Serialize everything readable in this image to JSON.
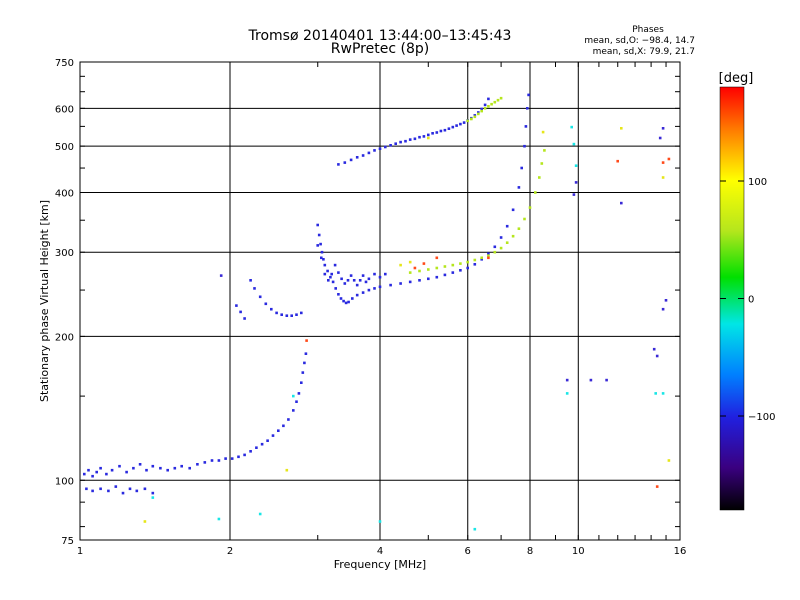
{
  "header": {
    "title": "Tromsø 20140401 13:44:00–13:45:43",
    "subtitle": "RwPretec (8p)",
    "stats_title": "Phases",
    "stats_o": "mean, sd,O: −98.4, 14.7",
    "stats_x": "mean, sd,X:  79.9, 21.7"
  },
  "colorbar": {
    "label": "[deg]",
    "ticks": [
      {
        "value": 100,
        "label": "100"
      },
      {
        "value": 0,
        "label": "0"
      },
      {
        "value": -100,
        "label": "−100"
      }
    ],
    "range": [
      -180,
      180
    ]
  },
  "chart_data": {
    "type": "scatter",
    "title": "Tromsø 20140401 13:44:00–13:45:43",
    "subtitle": "RwPretec (8p)",
    "xlabel": "Frequency [MHz]",
    "ylabel": "Stationary phase Virtual Height [km]",
    "x_scale": "log",
    "y_scale": "log",
    "xlim": [
      1,
      16
    ],
    "ylim": [
      75,
      750
    ],
    "x_ticks": [
      1,
      2,
      4,
      6,
      8,
      10,
      16
    ],
    "x_tick_labels": [
      "1",
      "2",
      "4",
      "6",
      "8",
      "10",
      "16"
    ],
    "y_ticks": [
      75,
      100,
      200,
      300,
      400,
      500,
      600,
      750
    ],
    "y_tick_labels": [
      "75",
      "100",
      "200",
      "300",
      "400",
      "500",
      "600",
      "750"
    ],
    "grid": true,
    "color_scale": "phase [deg]",
    "series": [
      {
        "color": "#2a2adf",
        "phase": -100,
        "points": [
          [
            1.02,
            103
          ],
          [
            1.04,
            105
          ],
          [
            1.06,
            102
          ],
          [
            1.08,
            104
          ],
          [
            1.1,
            106
          ],
          [
            1.13,
            103
          ],
          [
            1.16,
            105
          ],
          [
            1.2,
            107
          ],
          [
            1.24,
            104
          ],
          [
            1.28,
            106
          ],
          [
            1.32,
            108
          ],
          [
            1.36,
            105
          ],
          [
            1.4,
            107
          ],
          [
            1.45,
            106
          ],
          [
            1.5,
            105
          ],
          [
            1.55,
            106
          ],
          [
            1.6,
            107
          ],
          [
            1.66,
            106
          ],
          [
            1.72,
            108
          ],
          [
            1.78,
            109
          ],
          [
            1.84,
            110
          ],
          [
            1.9,
            110
          ],
          [
            1.96,
            111
          ],
          [
            2.02,
            111
          ],
          [
            2.08,
            112
          ],
          [
            2.14,
            113
          ],
          [
            2.2,
            115
          ],
          [
            2.26,
            117
          ],
          [
            2.32,
            119
          ],
          [
            2.38,
            121
          ],
          [
            2.44,
            124
          ],
          [
            2.5,
            127
          ],
          [
            2.56,
            130
          ],
          [
            2.62,
            134
          ],
          [
            2.68,
            140
          ],
          [
            2.72,
            146
          ],
          [
            2.75,
            152
          ],
          [
            2.78,
            160
          ],
          [
            2.8,
            168
          ],
          [
            2.82,
            176
          ],
          [
            2.84,
            184
          ],
          [
            1.03,
            96
          ],
          [
            1.06,
            95
          ],
          [
            1.1,
            96
          ],
          [
            1.14,
            95
          ],
          [
            1.18,
            97
          ],
          [
            1.22,
            94
          ],
          [
            1.26,
            96
          ],
          [
            1.3,
            95
          ],
          [
            1.35,
            96
          ],
          [
            1.4,
            94
          ],
          [
            2.06,
            232
          ],
          [
            2.1,
            225
          ],
          [
            2.14,
            218
          ],
          [
            2.2,
            262
          ],
          [
            2.24,
            252
          ],
          [
            2.3,
            242
          ],
          [
            2.36,
            234
          ],
          [
            2.42,
            228
          ],
          [
            2.48,
            224
          ],
          [
            2.54,
            222
          ],
          [
            2.6,
            221
          ],
          [
            2.66,
            221
          ],
          [
            2.72,
            222
          ],
          [
            2.78,
            224
          ],
          [
            3.0,
            342
          ],
          [
            3.02,
            326
          ],
          [
            3.04,
            312
          ],
          [
            3.06,
            300
          ],
          [
            3.08,
            290
          ],
          [
            3.1,
            282
          ],
          [
            3.14,
            274
          ],
          [
            3.18,
            266
          ],
          [
            3.22,
            260
          ],
          [
            3.26,
            252
          ],
          [
            3.3,
            245
          ],
          [
            3.34,
            240
          ],
          [
            3.38,
            237
          ],
          [
            3.42,
            235
          ],
          [
            3.46,
            236
          ],
          [
            3.52,
            240
          ],
          [
            3.6,
            244
          ],
          [
            3.7,
            247
          ],
          [
            3.8,
            250
          ],
          [
            3.9,
            252
          ],
          [
            4.0,
            254
          ],
          [
            4.2,
            256
          ],
          [
            4.4,
            258
          ],
          [
            4.6,
            260
          ],
          [
            4.8,
            262
          ],
          [
            5.0,
            264
          ],
          [
            5.2,
            266
          ],
          [
            5.4,
            269
          ],
          [
            5.6,
            272
          ],
          [
            5.8,
            275
          ],
          [
            6.0,
            278
          ],
          [
            6.2,
            283
          ],
          [
            6.4,
            290
          ],
          [
            6.6,
            298
          ],
          [
            6.8,
            308
          ],
          [
            7.0,
            322
          ],
          [
            7.2,
            340
          ],
          [
            7.4,
            368
          ],
          [
            7.6,
            410
          ],
          [
            7.7,
            450
          ],
          [
            7.8,
            500
          ],
          [
            7.85,
            550
          ],
          [
            7.9,
            600
          ],
          [
            7.95,
            640
          ],
          [
            3.0,
            310
          ],
          [
            3.05,
            292
          ],
          [
            3.1,
            270
          ],
          [
            3.15,
            262
          ],
          [
            3.2,
            270
          ],
          [
            3.25,
            282
          ],
          [
            3.3,
            272
          ],
          [
            3.35,
            264
          ],
          [
            3.4,
            258
          ],
          [
            3.45,
            262
          ],
          [
            3.5,
            268
          ],
          [
            3.55,
            262
          ],
          [
            3.6,
            256
          ],
          [
            3.65,
            262
          ],
          [
            3.7,
            268
          ],
          [
            3.75,
            260
          ],
          [
            3.8,
            264
          ],
          [
            3.9,
            270
          ],
          [
            4.0,
            266
          ],
          [
            4.1,
            270
          ],
          [
            3.3,
            458
          ],
          [
            3.4,
            462
          ],
          [
            3.5,
            468
          ],
          [
            3.6,
            474
          ],
          [
            3.7,
            478
          ],
          [
            3.8,
            484
          ],
          [
            3.9,
            490
          ],
          [
            4.0,
            494
          ],
          [
            4.1,
            498
          ],
          [
            4.2,
            502
          ],
          [
            4.3,
            506
          ],
          [
            4.4,
            510
          ],
          [
            4.5,
            512
          ],
          [
            4.6,
            516
          ],
          [
            4.7,
            518
          ],
          [
            4.8,
            522
          ],
          [
            4.9,
            524
          ],
          [
            5.0,
            528
          ],
          [
            5.1,
            532
          ],
          [
            5.2,
            534
          ],
          [
            5.3,
            538
          ],
          [
            5.4,
            540
          ],
          [
            5.5,
            544
          ],
          [
            5.6,
            548
          ],
          [
            5.7,
            552
          ],
          [
            5.8,
            556
          ],
          [
            5.9,
            560
          ],
          [
            6.0,
            566
          ],
          [
            6.1,
            572
          ],
          [
            6.2,
            580
          ],
          [
            6.3,
            588
          ],
          [
            6.4,
            598
          ],
          [
            6.5,
            610
          ],
          [
            6.6,
            628
          ]
        ]
      },
      {
        "color": "#b5e61d",
        "phase": 80,
        "points": [
          [
            4.6,
            272
          ],
          [
            4.8,
            274
          ],
          [
            5.0,
            276
          ],
          [
            5.2,
            278
          ],
          [
            5.4,
            280
          ],
          [
            5.6,
            282
          ],
          [
            5.8,
            284
          ],
          [
            6.0,
            286
          ],
          [
            6.2,
            289
          ],
          [
            6.4,
            292
          ],
          [
            6.6,
            295
          ],
          [
            6.8,
            300
          ],
          [
            7.0,
            306
          ],
          [
            7.2,
            314
          ],
          [
            7.4,
            324
          ],
          [
            7.6,
            336
          ],
          [
            7.8,
            352
          ],
          [
            8.0,
            372
          ],
          [
            8.2,
            400
          ],
          [
            8.35,
            430
          ],
          [
            8.45,
            460
          ],
          [
            8.55,
            490
          ],
          [
            6.0,
            565
          ],
          [
            6.1,
            570
          ],
          [
            6.2,
            576
          ],
          [
            6.3,
            584
          ],
          [
            6.4,
            592
          ],
          [
            6.5,
            600
          ],
          [
            6.6,
            606
          ],
          [
            6.7,
            612
          ],
          [
            6.8,
            618
          ],
          [
            6.9,
            624
          ],
          [
            7.0,
            630
          ]
        ]
      },
      {
        "color": "#e6e619",
        "phase": 100,
        "points": [
          [
            1.35,
            82
          ],
          [
            2.6,
            105
          ],
          [
            4.4,
            282
          ],
          [
            4.6,
            286
          ],
          [
            5.0,
            520
          ],
          [
            8.5,
            535
          ],
          [
            12.2,
            545
          ],
          [
            14.8,
            430
          ],
          [
            15.2,
            110
          ]
        ]
      },
      {
        "color": "#ff4a1a",
        "phase": 150,
        "points": [
          [
            2.85,
            196
          ],
          [
            4.7,
            278
          ],
          [
            4.9,
            284
          ],
          [
            5.2,
            292
          ],
          [
            6.6,
            292
          ],
          [
            12.0,
            465
          ],
          [
            14.4,
            97
          ],
          [
            14.8,
            462
          ],
          [
            15.2,
            470
          ]
        ]
      },
      {
        "color": "#19e6e6",
        "phase": -10,
        "points": [
          [
            1.4,
            92
          ],
          [
            1.9,
            83
          ],
          [
            2.3,
            85
          ],
          [
            2.68,
            150
          ],
          [
            4.0,
            82
          ],
          [
            6.2,
            79
          ],
          [
            9.5,
            152
          ],
          [
            14.3,
            152
          ],
          [
            14.8,
            152
          ],
          [
            9.7,
            548
          ],
          [
            9.8,
            505
          ],
          [
            9.9,
            455
          ]
        ]
      },
      {
        "color": "#3a2ad6",
        "phase": -110,
        "points": [
          [
            1.92,
            268
          ],
          [
            9.5,
            162
          ],
          [
            10.6,
            162
          ],
          [
            11.4,
            162
          ],
          [
            12.2,
            380
          ],
          [
            14.2,
            188
          ],
          [
            14.4,
            182
          ],
          [
            14.8,
            228
          ],
          [
            15.0,
            238
          ],
          [
            9.8,
            396
          ],
          [
            9.9,
            420
          ],
          [
            14.6,
            520
          ],
          [
            14.8,
            545
          ]
        ]
      }
    ]
  }
}
